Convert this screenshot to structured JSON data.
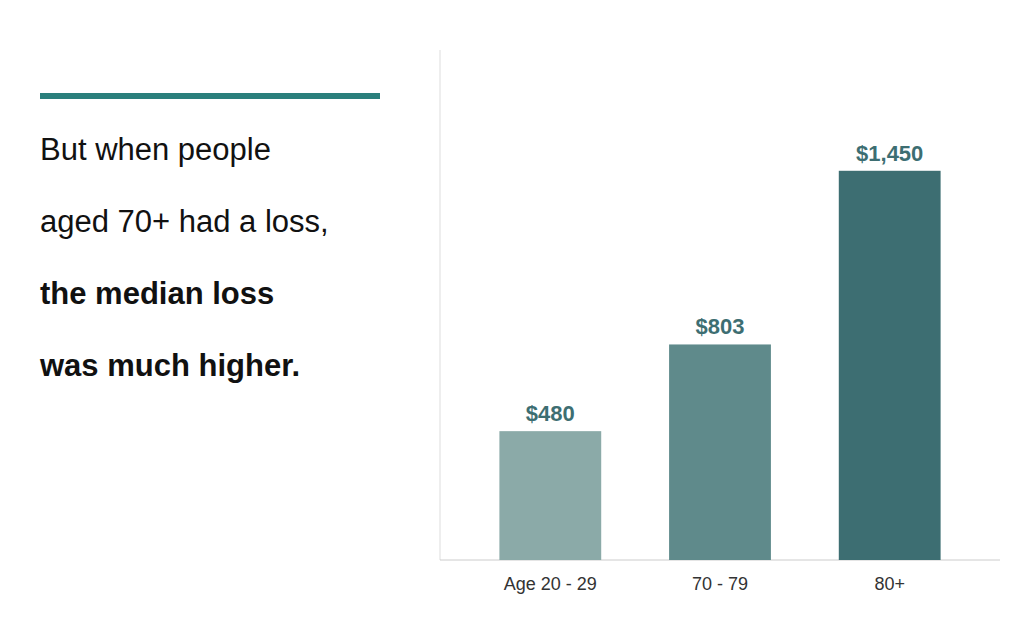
{
  "chart_data": {
    "type": "bar",
    "annotations": [
      "But when people",
      "aged 70+ had a loss,",
      "the median loss",
      "was much higher."
    ],
    "categories": [
      "Age 20 - 29",
      "70 - 79",
      "80+"
    ],
    "values": [
      480,
      803,
      1450
    ],
    "value_labels": [
      "$480",
      "$803",
      "$1,450"
    ],
    "colors": [
      "#8BAAA8",
      "#5F8A8B",
      "#3D6E72"
    ],
    "ylim": [
      0,
      1900
    ],
    "data_labels": true,
    "tick_labels": "x",
    "grid": false
  }
}
